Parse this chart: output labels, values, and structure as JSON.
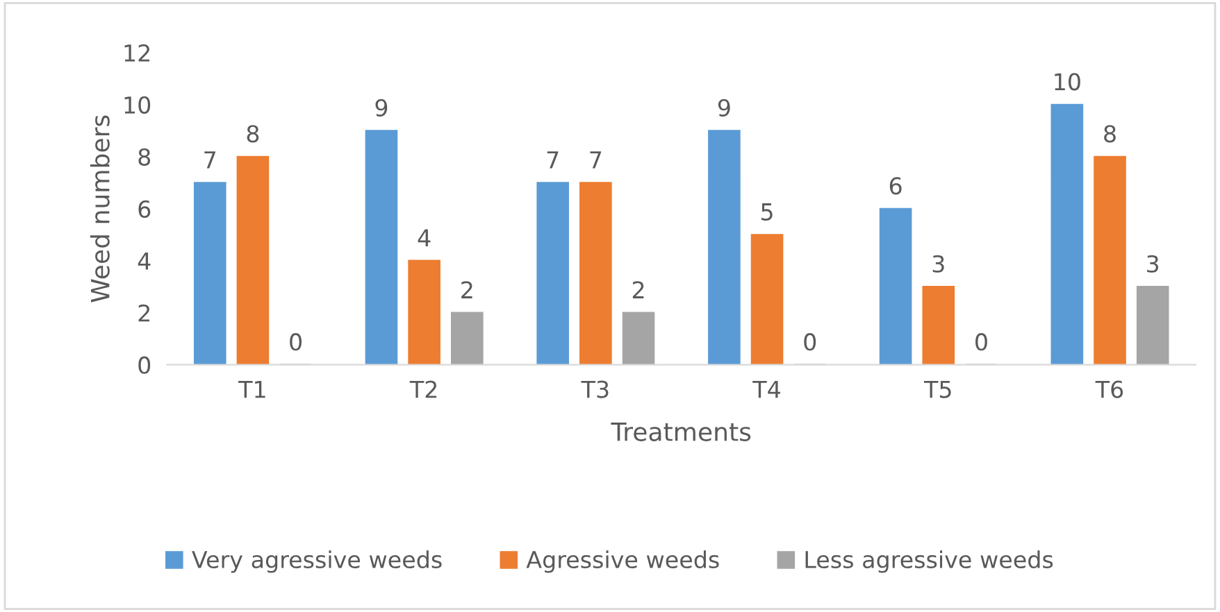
{
  "chart_data": {
    "type": "bar",
    "xlabel": "Treatments",
    "ylabel": "Weed numbers",
    "categories": [
      "T1",
      "T2",
      "T3",
      "T4",
      "T5",
      "T6"
    ],
    "series": [
      {
        "name": "Very agressive weeds",
        "color": "#5b9bd5",
        "values": [
          7,
          9,
          7,
          9,
          6,
          10
        ]
      },
      {
        "name": "Agressive weeds",
        "color": "#ed7d31",
        "values": [
          8,
          4,
          7,
          5,
          3,
          8
        ]
      },
      {
        "name": "Less agressive weeds",
        "color": "#a5a5a5",
        "values": [
          0,
          2,
          2,
          0,
          0,
          3
        ]
      }
    ],
    "ylim": [
      0,
      12
    ],
    "yticks": [
      0,
      2,
      4,
      6,
      8,
      10,
      12
    ],
    "grid": false,
    "legend": "bottom",
    "data_labels": true
  }
}
